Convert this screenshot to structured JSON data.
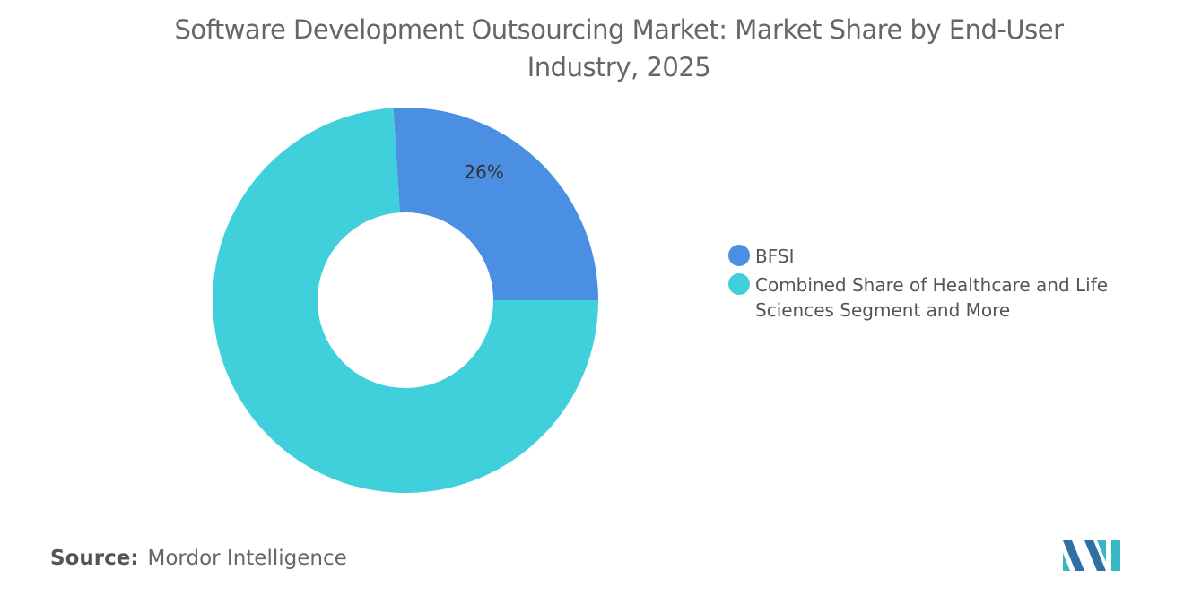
{
  "chart_data": {
    "type": "pie",
    "title": "Software Development Outsourcing Market: Market Share by End-User Industry, 2025",
    "categories": [
      "BFSI",
      "Combined Share of Healthcare and Life Sciences Segment and More"
    ],
    "values": [
      26,
      74
    ],
    "value_labels": [
      "26%",
      null
    ],
    "colors": [
      "#4a8fe2",
      "#40d0db"
    ],
    "donut": true,
    "source_label": "Source:",
    "source": "Mordor Intelligence"
  }
}
